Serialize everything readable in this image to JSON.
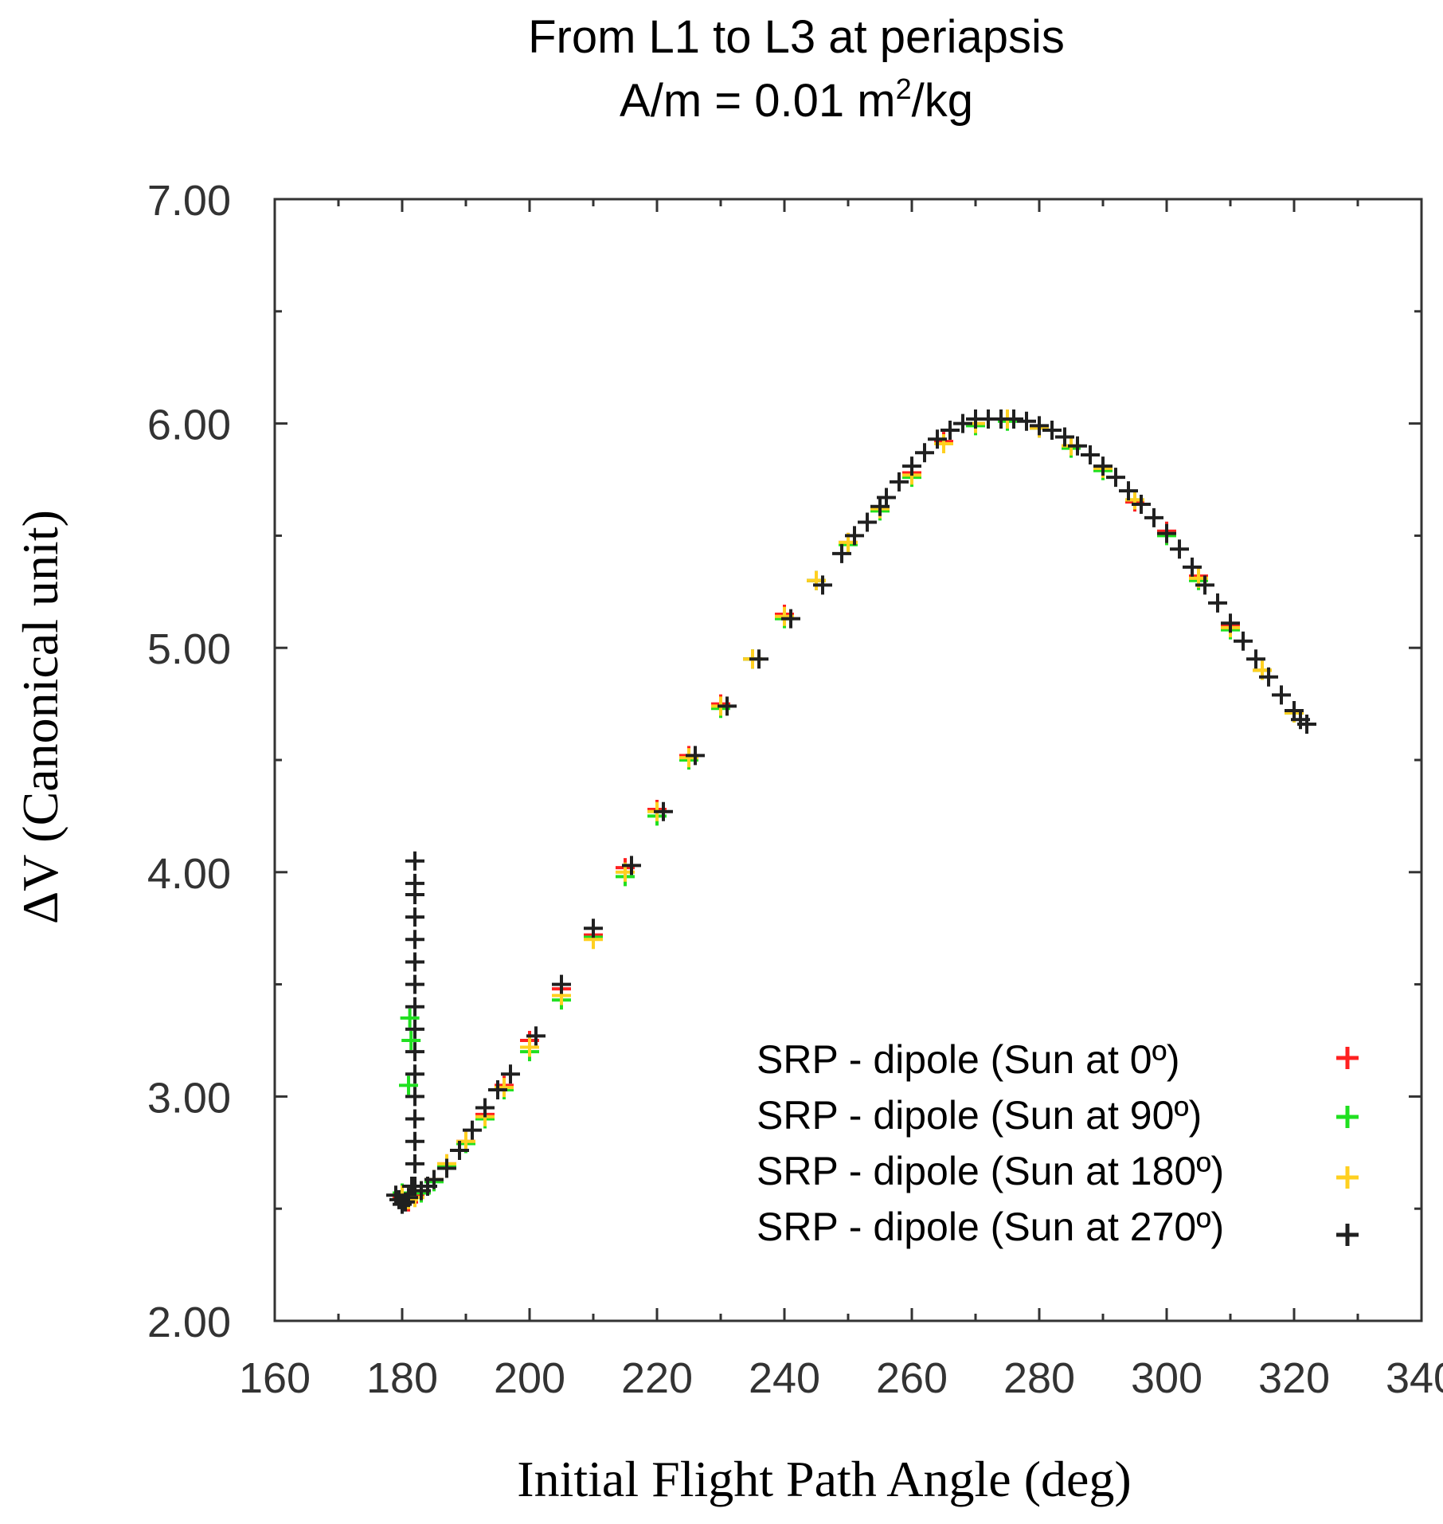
{
  "chart_data": {
    "type": "scatter",
    "title_line1": "From L1 to L3 at periapsis",
    "title_line2_prefix": "A/m = 0.01 m",
    "title_line2_sup": "2",
    "title_line2_suffix": "/kg",
    "xlabel": "Initial Flight Path Angle (deg)",
    "ylabel": "ΔV (Canonical unit)",
    "xlim": [
      160,
      340
    ],
    "ylim": [
      2.0,
      7.0
    ],
    "x_ticks": [
      160,
      180,
      200,
      220,
      240,
      260,
      280,
      300,
      320,
      340
    ],
    "x_tick_labels": [
      "160",
      "180",
      "200",
      "220",
      "240",
      "260",
      "280",
      "300",
      "320",
      "340"
    ],
    "y_ticks": [
      2.0,
      3.0,
      4.0,
      5.0,
      6.0,
      7.0
    ],
    "y_tick_labels": [
      "2.00",
      "3.00",
      "4.00",
      "5.00",
      "6.00",
      "7.00"
    ],
    "legend_position": "lower-right",
    "series": [
      {
        "name": "SRP - dipole (Sun at 0º)",
        "color": "#ff2020",
        "x": [
          180,
          181,
          182,
          183,
          185,
          187,
          190,
          193,
          196,
          200,
          205,
          210,
          215,
          220,
          225,
          230,
          235,
          240,
          245,
          250,
          255,
          260,
          265,
          270,
          275,
          280,
          285,
          290,
          295,
          300,
          305,
          310,
          315,
          320,
          322
        ],
        "y": [
          2.55,
          2.53,
          2.56,
          2.58,
          2.63,
          2.7,
          2.8,
          2.92,
          3.05,
          3.25,
          3.48,
          3.72,
          4.02,
          4.28,
          4.52,
          4.75,
          4.95,
          5.15,
          5.3,
          5.47,
          5.62,
          5.78,
          5.92,
          6.0,
          6.02,
          5.98,
          5.9,
          5.8,
          5.65,
          5.52,
          5.32,
          5.1,
          4.9,
          4.72,
          4.66
        ]
      },
      {
        "name": "SRP - dipole (Sun at 90º)",
        "color": "#20e020",
        "x": [
          180,
          181,
          182,
          183,
          185,
          187,
          190,
          193,
          196,
          200,
          205,
          210,
          215,
          220,
          225,
          230,
          235,
          240,
          245,
          250,
          255,
          260,
          265,
          270,
          275,
          280,
          285,
          290,
          295,
          300,
          305,
          310,
          315,
          320,
          322,
          181,
          181.2,
          181.4
        ],
        "y": [
          2.57,
          2.55,
          2.55,
          2.57,
          2.62,
          2.69,
          2.79,
          2.9,
          3.03,
          3.2,
          3.43,
          3.71,
          3.98,
          4.25,
          4.5,
          4.73,
          4.95,
          5.13,
          5.3,
          5.46,
          5.61,
          5.76,
          5.91,
          5.99,
          6.01,
          5.98,
          5.89,
          5.79,
          5.66,
          5.5,
          5.3,
          5.08,
          4.9,
          4.71,
          4.66,
          3.05,
          3.35,
          3.25
        ]
      },
      {
        "name": "SRP - dipole (Sun at 180º)",
        "color": "#ffd020",
        "x": [
          180,
          181,
          182,
          183,
          185,
          187,
          190,
          193,
          196,
          200,
          205,
          210,
          215,
          220,
          225,
          230,
          235,
          240,
          245,
          250,
          255,
          260,
          265,
          270,
          275,
          280,
          285,
          290,
          295,
          300,
          305,
          310,
          315,
          320,
          322
        ],
        "y": [
          2.56,
          2.54,
          2.55,
          2.58,
          2.63,
          2.7,
          2.8,
          2.91,
          3.04,
          3.22,
          3.45,
          3.7,
          4.0,
          4.27,
          4.51,
          4.74,
          4.95,
          5.14,
          5.3,
          5.47,
          5.62,
          5.77,
          5.91,
          6.0,
          6.02,
          5.98,
          5.9,
          5.8,
          5.66,
          5.51,
          5.31,
          5.09,
          4.9,
          4.71,
          4.66
        ]
      },
      {
        "name": "SRP - dipole (Sun at 270º)",
        "color": "#202020",
        "x": [
          179,
          179.5,
          180,
          180.5,
          181,
          181.5,
          182,
          182,
          182,
          182,
          182,
          182,
          182,
          182,
          182,
          182,
          182,
          182,
          182,
          182,
          182,
          182,
          183,
          184,
          185,
          187,
          189,
          191,
          193,
          195,
          197,
          201,
          205,
          210,
          216,
          221,
          226,
          231,
          236,
          241,
          246,
          249,
          251,
          253,
          255,
          256,
          258,
          260,
          262,
          264,
          266,
          268,
          270,
          272,
          274,
          276,
          278,
          280,
          282,
          284,
          286,
          288,
          290,
          292,
          294,
          296,
          298,
          300,
          302,
          304,
          306,
          308,
          310,
          312,
          314,
          316,
          318,
          320,
          321,
          322
        ],
        "y": [
          2.56,
          2.54,
          2.52,
          2.53,
          2.55,
          2.6,
          2.7,
          2.8,
          2.9,
          3.0,
          3.1,
          3.2,
          3.3,
          3.4,
          3.5,
          3.6,
          3.7,
          3.8,
          3.9,
          3.95,
          4.05,
          2.6,
          2.58,
          2.6,
          2.63,
          2.68,
          2.76,
          2.85,
          2.95,
          3.03,
          3.1,
          3.27,
          3.5,
          3.75,
          4.03,
          4.27,
          4.52,
          4.74,
          4.95,
          5.13,
          5.28,
          5.42,
          5.5,
          5.56,
          5.63,
          5.67,
          5.74,
          5.81,
          5.87,
          5.93,
          5.97,
          6.0,
          6.02,
          6.02,
          6.02,
          6.02,
          6.01,
          5.99,
          5.97,
          5.94,
          5.9,
          5.86,
          5.81,
          5.76,
          5.7,
          5.64,
          5.58,
          5.51,
          5.44,
          5.36,
          5.28,
          5.2,
          5.11,
          5.03,
          4.95,
          4.87,
          4.79,
          4.72,
          4.68,
          4.66
        ]
      }
    ]
  }
}
